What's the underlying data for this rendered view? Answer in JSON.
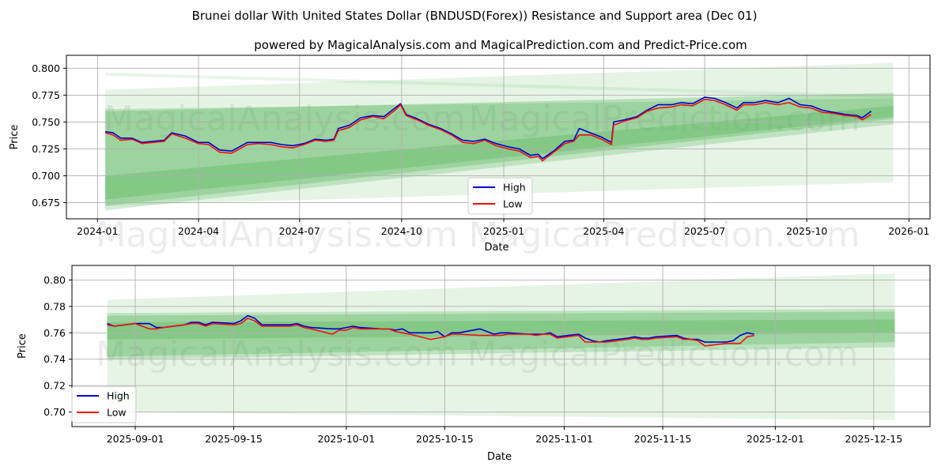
{
  "title": "Brunei dollar With United States Dollar (BNDUSD(Forex)) Resistance and Support area (Dec 01)",
  "subtitle": "powered by MagicalAnalysis.com and MagicalPrediction.com and Predict-Price.com",
  "watermarks": [
    "MagicalAnalysis.com",
    "MagicalPrediction.com"
  ],
  "colors": {
    "high": "#0000cc",
    "low": "#ee1111",
    "band": "#4caf50"
  },
  "chart_data": [
    {
      "type": "line",
      "xlabel": "Date",
      "ylabel": "Price",
      "ylim": [
        0.66,
        0.812
      ],
      "xlim": [
        "2023-12-04",
        "2026-01-20"
      ],
      "grid": true,
      "legend": {
        "position": "center-bottom",
        "entries": [
          "High",
          "Low"
        ]
      },
      "yticks": [
        "0.675",
        "0.700",
        "0.725",
        "0.750",
        "0.775",
        "0.800"
      ],
      "xticks": [
        "2024-01",
        "2024-04",
        "2024-07",
        "2024-10",
        "2025-01",
        "2025-04",
        "2025-07",
        "2025-10",
        "2026-01"
      ],
      "band_range": [
        "2024-01-08",
        "2025-12-18"
      ],
      "bands": [
        {
          "start": [
            0.793,
            0.796
          ],
          "end": [
            0.772,
            0.775
          ],
          "alpha": 0.12
        },
        {
          "start": [
            0.672,
            0.78
          ],
          "end": [
            0.694,
            0.805
          ],
          "alpha": 0.14
        },
        {
          "start": [
            0.668,
            0.762
          ],
          "end": [
            0.748,
            0.772
          ],
          "alpha": 0.25
        },
        {
          "start": [
            0.672,
            0.76
          ],
          "end": [
            0.753,
            0.777
          ],
          "alpha": 0.3
        },
        {
          "start": [
            0.678,
            0.7
          ],
          "end": [
            0.755,
            0.765
          ],
          "alpha": 0.3
        }
      ],
      "dates": [
        "2024-01-08",
        "2024-01-15",
        "2024-01-22",
        "2024-02-01",
        "2024-02-10",
        "2024-02-20",
        "2024-03-01",
        "2024-03-08",
        "2024-03-20",
        "2024-04-01",
        "2024-04-10",
        "2024-04-20",
        "2024-05-01",
        "2024-05-15",
        "2024-05-25",
        "2024-06-05",
        "2024-06-15",
        "2024-06-25",
        "2024-07-05",
        "2024-07-15",
        "2024-07-25",
        "2024-08-01",
        "2024-08-05",
        "2024-08-15",
        "2024-08-25",
        "2024-09-05",
        "2024-09-15",
        "2024-09-25",
        "2024-09-30",
        "2024-10-05",
        "2024-10-15",
        "2024-10-25",
        "2024-11-05",
        "2024-11-15",
        "2024-11-25",
        "2024-12-05",
        "2024-12-15",
        "2024-12-25",
        "2025-01-05",
        "2025-01-15",
        "2025-01-25",
        "2025-02-01",
        "2025-02-05",
        "2025-02-15",
        "2025-02-25",
        "2025-03-05",
        "2025-03-10",
        "2025-03-20",
        "2025-03-30",
        "2025-04-08",
        "2025-04-10",
        "2025-04-20",
        "2025-05-01",
        "2025-05-10",
        "2025-05-20",
        "2025-06-01",
        "2025-06-10",
        "2025-06-20",
        "2025-07-01",
        "2025-07-10",
        "2025-07-20",
        "2025-07-30",
        "2025-08-05",
        "2025-08-15",
        "2025-08-25",
        "2025-09-05",
        "2025-09-15",
        "2025-09-25",
        "2025-10-05",
        "2025-10-15",
        "2025-10-25",
        "2025-11-05",
        "2025-11-15",
        "2025-11-20",
        "2025-11-28"
      ],
      "low": [
        0.74,
        0.738,
        0.733,
        0.734,
        0.73,
        0.731,
        0.732,
        0.739,
        0.735,
        0.73,
        0.729,
        0.722,
        0.721,
        0.729,
        0.73,
        0.729,
        0.727,
        0.726,
        0.729,
        0.733,
        0.732,
        0.733,
        0.742,
        0.745,
        0.752,
        0.755,
        0.753,
        0.761,
        0.766,
        0.756,
        0.752,
        0.747,
        0.743,
        0.738,
        0.731,
        0.73,
        0.733,
        0.728,
        0.725,
        0.723,
        0.717,
        0.718,
        0.714,
        0.722,
        0.73,
        0.732,
        0.738,
        0.738,
        0.734,
        0.729,
        0.747,
        0.751,
        0.754,
        0.76,
        0.763,
        0.764,
        0.766,
        0.765,
        0.771,
        0.77,
        0.766,
        0.761,
        0.766,
        0.766,
        0.768,
        0.766,
        0.768,
        0.764,
        0.763,
        0.759,
        0.758,
        0.756,
        0.755,
        0.752,
        0.757
      ],
      "high": [
        0.741,
        0.74,
        0.735,
        0.735,
        0.731,
        0.732,
        0.733,
        0.74,
        0.737,
        0.731,
        0.731,
        0.724,
        0.723,
        0.731,
        0.731,
        0.731,
        0.729,
        0.728,
        0.73,
        0.734,
        0.733,
        0.734,
        0.744,
        0.747,
        0.754,
        0.756,
        0.755,
        0.763,
        0.767,
        0.757,
        0.753,
        0.748,
        0.744,
        0.739,
        0.733,
        0.732,
        0.734,
        0.73,
        0.727,
        0.725,
        0.719,
        0.72,
        0.716,
        0.723,
        0.732,
        0.733,
        0.744,
        0.74,
        0.736,
        0.731,
        0.75,
        0.752,
        0.755,
        0.761,
        0.766,
        0.766,
        0.768,
        0.767,
        0.773,
        0.772,
        0.768,
        0.763,
        0.768,
        0.768,
        0.77,
        0.768,
        0.772,
        0.766,
        0.765,
        0.761,
        0.759,
        0.757,
        0.756,
        0.754,
        0.76
      ]
    },
    {
      "type": "line",
      "xlabel": "Date",
      "ylabel": "Price",
      "ylim": [
        0.689,
        0.811
      ],
      "xlim": [
        "2025-08-23",
        "2025-12-23"
      ],
      "grid": true,
      "legend": {
        "position": "bottom-left",
        "entries": [
          "High",
          "Low"
        ]
      },
      "yticks": [
        "0.70",
        "0.72",
        "0.74",
        "0.76",
        "0.78",
        "0.80"
      ],
      "xticks": [
        "2025-09-01",
        "2025-09-15",
        "2025-10-01",
        "2025-10-15",
        "2025-11-01",
        "2025-11-15",
        "2025-12-01",
        "2025-12-15"
      ],
      "band_range": [
        "2025-08-28",
        "2025-12-18"
      ],
      "bands": [
        {
          "start": [
            0.7,
            0.785
          ],
          "end": [
            0.694,
            0.805
          ],
          "alpha": 0.14
        },
        {
          "start": [
            0.74,
            0.775
          ],
          "end": [
            0.749,
            0.778
          ],
          "alpha": 0.25
        },
        {
          "start": [
            0.742,
            0.773
          ],
          "end": [
            0.753,
            0.776
          ],
          "alpha": 0.3
        },
        {
          "start": [
            0.755,
            0.768
          ],
          "end": [
            0.76,
            0.77
          ],
          "alpha": 0.3
        }
      ],
      "dates": [
        "2025-08-28",
        "2025-08-29",
        "2025-09-01",
        "2025-09-03",
        "2025-09-04",
        "2025-09-05",
        "2025-09-08",
        "2025-09-09",
        "2025-09-10",
        "2025-09-11",
        "2025-09-12",
        "2025-09-15",
        "2025-09-16",
        "2025-09-17",
        "2025-09-18",
        "2025-09-19",
        "2025-09-22",
        "2025-09-23",
        "2025-09-24",
        "2025-09-25",
        "2025-09-26",
        "2025-09-29",
        "2025-09-30",
        "2025-10-01",
        "2025-10-02",
        "2025-10-03",
        "2025-10-06",
        "2025-10-07",
        "2025-10-08",
        "2025-10-09",
        "2025-10-10",
        "2025-10-13",
        "2025-10-14",
        "2025-10-15",
        "2025-10-16",
        "2025-10-17",
        "2025-10-20",
        "2025-10-21",
        "2025-10-22",
        "2025-10-23",
        "2025-10-24",
        "2025-10-27",
        "2025-10-28",
        "2025-10-29",
        "2025-10-30",
        "2025-10-31",
        "2025-11-03",
        "2025-11-04",
        "2025-11-05",
        "2025-11-06",
        "2025-11-07",
        "2025-11-10",
        "2025-11-11",
        "2025-11-12",
        "2025-11-13",
        "2025-11-14",
        "2025-11-17",
        "2025-11-18",
        "2025-11-19",
        "2025-11-20",
        "2025-11-21",
        "2025-11-24",
        "2025-11-25",
        "2025-11-26",
        "2025-11-27",
        "2025-11-28"
      ],
      "high": [
        0.767,
        0.765,
        0.767,
        0.767,
        0.764,
        0.764,
        0.766,
        0.768,
        0.768,
        0.766,
        0.768,
        0.767,
        0.769,
        0.773,
        0.771,
        0.766,
        0.766,
        0.766,
        0.767,
        0.765,
        0.764,
        0.763,
        0.763,
        0.764,
        0.765,
        0.764,
        0.763,
        0.763,
        0.762,
        0.763,
        0.76,
        0.76,
        0.761,
        0.757,
        0.76,
        0.76,
        0.763,
        0.761,
        0.759,
        0.76,
        0.76,
        0.759,
        0.759,
        0.759,
        0.76,
        0.757,
        0.759,
        0.756,
        0.754,
        0.753,
        0.754,
        0.756,
        0.757,
        0.756,
        0.756,
        0.757,
        0.758,
        0.756,
        0.755,
        0.755,
        0.753,
        0.753,
        0.754,
        0.758,
        0.76,
        0.759
      ],
      "low": [
        0.766,
        0.765,
        0.767,
        0.763,
        0.763,
        0.764,
        0.766,
        0.767,
        0.767,
        0.765,
        0.767,
        0.766,
        0.767,
        0.771,
        0.769,
        0.765,
        0.765,
        0.765,
        0.766,
        0.764,
        0.763,
        0.759,
        0.762,
        0.762,
        0.764,
        0.763,
        0.763,
        0.763,
        0.761,
        0.76,
        0.759,
        0.755,
        0.756,
        0.757,
        0.759,
        0.759,
        0.758,
        0.758,
        0.758,
        0.758,
        0.759,
        0.759,
        0.758,
        0.759,
        0.759,
        0.756,
        0.758,
        0.753,
        0.753,
        0.753,
        0.753,
        0.755,
        0.756,
        0.755,
        0.755,
        0.756,
        0.757,
        0.755,
        0.755,
        0.754,
        0.75,
        0.752,
        0.752,
        0.752,
        0.757,
        0.758
      ]
    }
  ]
}
